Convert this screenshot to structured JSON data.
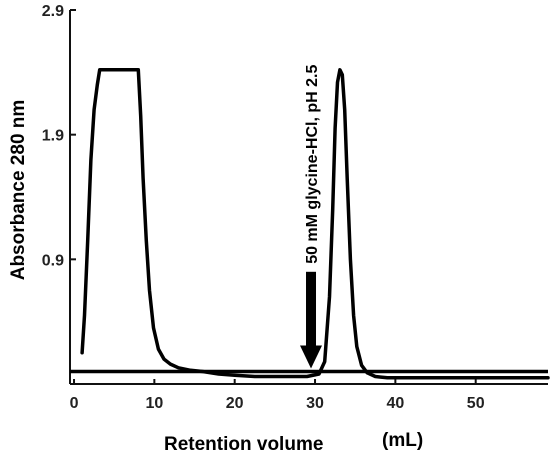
{
  "chart_data": {
    "type": "line",
    "title": "",
    "xlabel": "Retention volume",
    "xlabel_unit": "(mL)",
    "ylabel": "Absorbance 280 nm",
    "xlim": [
      -0.5,
      59
    ],
    "ylim": [
      -0.1,
      2.9
    ],
    "x_ticks": [
      0,
      10,
      20,
      30,
      40,
      50
    ],
    "x_tick_labels": [
      "0",
      "10",
      "20",
      "30",
      "40",
      "50"
    ],
    "y_ticks": [
      0.9,
      1.9,
      2.9
    ],
    "y_tick_labels": [
      "0.9",
      "1.9",
      "2.9"
    ],
    "grid": false,
    "legend": "none",
    "baseline_y": 0.0,
    "series": [
      {
        "x": [
          1.0,
          1.3,
          1.7,
          2.1,
          2.5,
          2.9,
          3.2,
          3.5,
          8.0,
          8.3,
          8.6,
          9.0,
          9.4,
          9.9,
          10.5,
          11.2,
          12.0,
          13.0,
          14.5,
          16.0,
          18.0,
          20.0,
          22.5,
          25.0,
          27.5,
          29.0,
          30.5,
          31.2,
          31.8,
          32.2,
          32.5,
          32.8,
          33.1,
          33.4,
          33.7,
          34.0,
          34.4,
          34.8,
          35.2,
          35.8,
          36.5,
          37.5,
          39.0,
          42.0,
          46.0,
          50.0,
          54.0,
          59.0
        ],
        "y": [
          0.15,
          0.45,
          1.05,
          1.7,
          2.1,
          2.3,
          2.42,
          2.42,
          2.42,
          2.05,
          1.55,
          1.05,
          0.65,
          0.35,
          0.18,
          0.1,
          0.06,
          0.03,
          0.01,
          0.0,
          -0.02,
          -0.03,
          -0.04,
          -0.04,
          -0.04,
          -0.04,
          -0.02,
          0.08,
          0.6,
          1.3,
          1.95,
          2.32,
          2.42,
          2.38,
          2.1,
          1.55,
          0.9,
          0.45,
          0.2,
          0.05,
          -0.01,
          -0.04,
          -0.05,
          -0.05,
          -0.05,
          -0.05,
          -0.05,
          -0.05
        ]
      }
    ],
    "annotation": {
      "text": "50 mM glycine-HCl, pH 2.5",
      "arrow_x": 29.5,
      "arrow_top": 0.8,
      "arrow_bottom": 0.0
    }
  }
}
